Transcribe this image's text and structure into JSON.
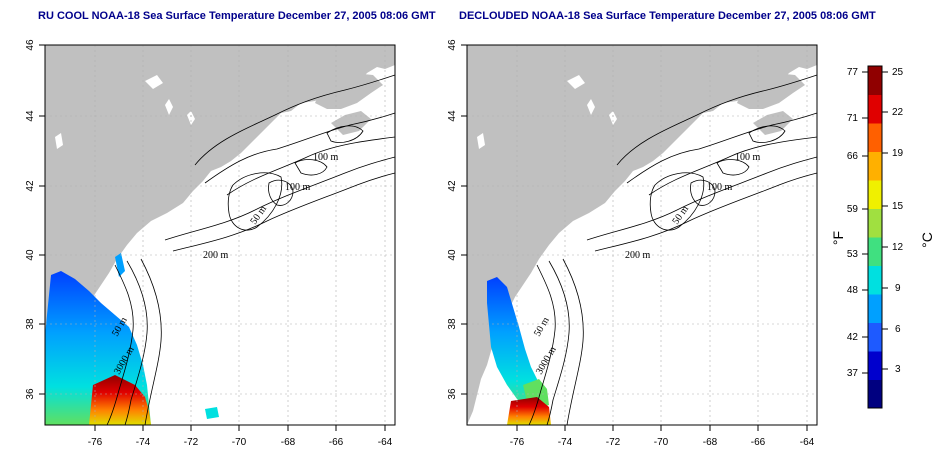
{
  "panels": [
    {
      "title": "RU COOL NOAA-18 Sea Surface Temperature December 27, 2005 08:06 GMT"
    },
    {
      "title": "DECLOUDED NOAA-18 Sea Surface Temperature December 27, 2005 08:06 GMT"
    }
  ],
  "axes": {
    "x_ticks": [
      "-76",
      "-74",
      "-72",
      "-70",
      "-68",
      "-66",
      "-64"
    ],
    "y_ticks": [
      "46",
      "44",
      "42",
      "40",
      "38",
      "36"
    ]
  },
  "contours": {
    "labels": [
      "100 m",
      "100 m",
      "50 m",
      "200 m",
      "50 m",
      "3000 m"
    ]
  },
  "colorbar": {
    "fahrenheit_ticks": [
      "77",
      "71",
      "66",
      "59",
      "53",
      "48",
      "42",
      "37"
    ],
    "celsius_ticks": [
      "25",
      "22",
      "19",
      "15",
      "12",
      "9",
      "6",
      "3"
    ],
    "fahrenheit_unit": "°F",
    "celsius_unit": "°C",
    "colors": [
      "#000080",
      "#0000cd",
      "#1e5aff",
      "#00a0ff",
      "#00e0e0",
      "#40e080",
      "#a0e040",
      "#f0f000",
      "#ffb000",
      "#ff6000",
      "#e00000",
      "#900000"
    ]
  },
  "colors": {
    "land": "#c0c0c0",
    "ocean": "#ffffff",
    "title": "#00008b"
  }
}
